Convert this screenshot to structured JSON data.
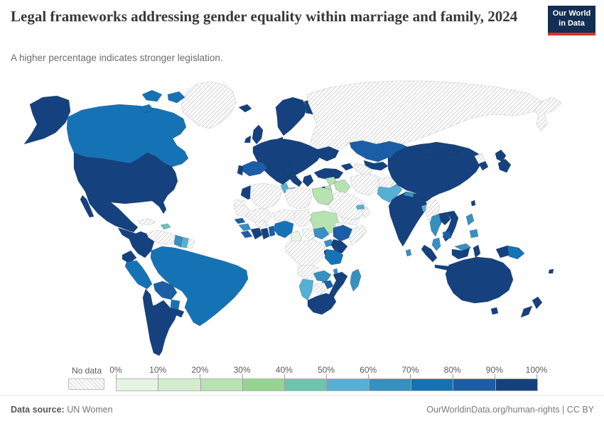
{
  "header": {
    "title": "Legal frameworks addressing gender equality within marriage and family, 2024",
    "subtitle": "A higher percentage indicates stronger legislation.",
    "logo_line1": "Our World",
    "logo_line2": "in Data"
  },
  "legend": {
    "no_data_label": "No data",
    "tick_labels": [
      "0%",
      "10%",
      "20%",
      "30%",
      "40%",
      "50%",
      "60%",
      "70%",
      "80%",
      "90%",
      "100%"
    ],
    "bin_colors": [
      "#e7f4e4",
      "#d4ecce",
      "#b7e2b1",
      "#96d491",
      "#6dc4af",
      "#57afd3",
      "#3690c0",
      "#1573b5",
      "#1b5ea5",
      "#15417e"
    ]
  },
  "footer": {
    "source_label": "Data source:",
    "source_value": " UN Women",
    "credit": "OurWorldinData.org/human-rights | CC BY"
  },
  "colors": {
    "logo_navy": "#132e52",
    "logo_red": "#d8352e",
    "hatch_line": "#d2d2d2",
    "nodata_border": "#c3c8cb",
    "filled_border": "rgba(30,50,80,0.4)",
    "title_text": "#383838",
    "subtitle_text": "#6d6d6d"
  },
  "chart_data": {
    "type": "choropleth",
    "title": "Legal frameworks addressing gender equality within marriage and family, 2024",
    "unit": "%",
    "range": [
      0,
      100
    ],
    "bin_size": 10,
    "legend_position": "bottom",
    "countries": {
      "United States": 95,
      "Canada": 75,
      "Mexico": 95,
      "Guatemala": 95,
      "Honduras": 95,
      "Nicaragua": 95,
      "Costa Rica": 95,
      "Panama": 95,
      "Haiti": 45,
      "Colombia": 95,
      "Ecuador": 95,
      "Peru": 75,
      "Brazil": 75,
      "Bolivia": 85,
      "Paraguay": 75,
      "Chile": 95,
      "Argentina": 95,
      "Uruguay": 95,
      "Guyana": 65,
      "Suriname": 55,
      "Iceland": 95,
      "United Kingdom": 95,
      "Ireland": 95,
      "Norway": 95,
      "Sweden": 95,
      "Finland": 95,
      "Denmark": 95,
      "France": 95,
      "Germany": 95,
      "Netherlands": 95,
      "Belgium": 95,
      "Poland": 95,
      "Czechia": 95,
      "Austria": 95,
      "Switzerland": 95,
      "Hungary": 85,
      "Ukraine": 95,
      "Romania": 95,
      "Bulgaria": 95,
      "Serbia": 95,
      "Greece": 95,
      "Italy": 95,
      "Spain": 85,
      "Portugal": 95,
      "Georgia": 95,
      "Turkey": 95,
      "Israel": 95,
      "Morocco": 95,
      "Tunisia": 55,
      "Egypt": 25,
      "Sudan": 25,
      "Syria": 25,
      "Iraq": 25,
      "Jordan": 25,
      "United Arab Emirates": 55,
      "Senegal": 85,
      "Guinea": 65,
      "Sierra Leone": 85,
      "Liberia": 95,
      "Cote d'Ivoire": 95,
      "Ghana": 95,
      "Togo": 85,
      "Benin": 85,
      "Nigeria": 75,
      "Cameroon": 5,
      "South Sudan": 65,
      "Ethiopia": 85,
      "Uganda": 65,
      "Kenya": 95,
      "Rwanda": 95,
      "Tanzania": 75,
      "Zambia": 65,
      "Malawi": 65,
      "Zimbabwe": 85,
      "Mozambique": 95,
      "Namibia": 55,
      "South Africa": 95,
      "Madagascar": 65,
      "Kazakhstan": 85,
      "Uzbekistan": 95,
      "Kyrgyzstan": 95,
      "Pakistan": 55,
      "India": 95,
      "Nepal": 65,
      "Bangladesh": 55,
      "Sri Lanka": 65,
      "China": 95,
      "Mongolia": 95,
      "South Korea": 95,
      "Japan": 95,
      "Taiwan": 95,
      "Thailand": 65,
      "Laos": 95,
      "Vietnam": 95,
      "Cambodia": 85,
      "Malaysia": 65,
      "Philippines": 65,
      "Indonesia": 95,
      "Papua New Guinea": 75,
      "Australia": 95,
      "New Zealand": 95,
      "Fiji": 95
    },
    "no_data_countries": [
      "Greenland",
      "Russia",
      "Cuba",
      "Venezuela",
      "French Guiana",
      "Western Sahara",
      "Algeria",
      "Libya",
      "Mauritania",
      "Mali",
      "Niger",
      "Chad",
      "Burkina Faso",
      "Central African Republic",
      "Democratic Republic of Congo",
      "Angola",
      "Botswana",
      "Somalia",
      "Eritrea",
      "Saudi Arabia",
      "Yemen",
      "Oman",
      "Iran",
      "Afghanistan",
      "Turkmenistan",
      "Myanmar",
      "North Korea"
    ]
  }
}
